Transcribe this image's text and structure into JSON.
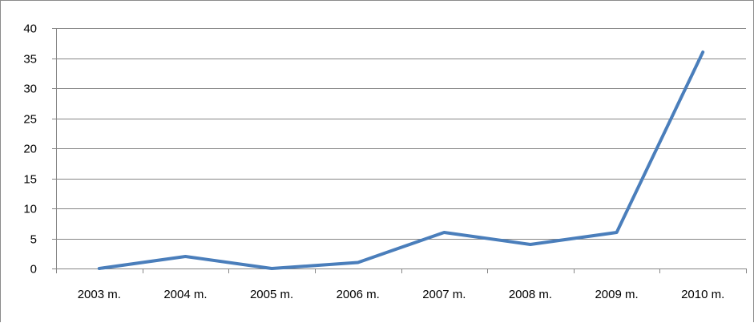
{
  "chart_data": {
    "type": "line",
    "title": "",
    "xlabel": "",
    "ylabel": "",
    "categories": [
      "2003 m.",
      "2004 m.",
      "2005 m.",
      "2006 m.",
      "2007 m.",
      "2008 m.",
      "2009 m.",
      "2010 m."
    ],
    "series": [
      {
        "values": [
          0,
          2,
          0,
          1,
          6,
          4,
          6,
          36
        ],
        "color": "#4a7ebb"
      }
    ],
    "ylim": [
      0,
      40
    ],
    "yticks": [
      0,
      5,
      10,
      15,
      20,
      25,
      30,
      35,
      40
    ],
    "grid": true,
    "legend": "none"
  }
}
